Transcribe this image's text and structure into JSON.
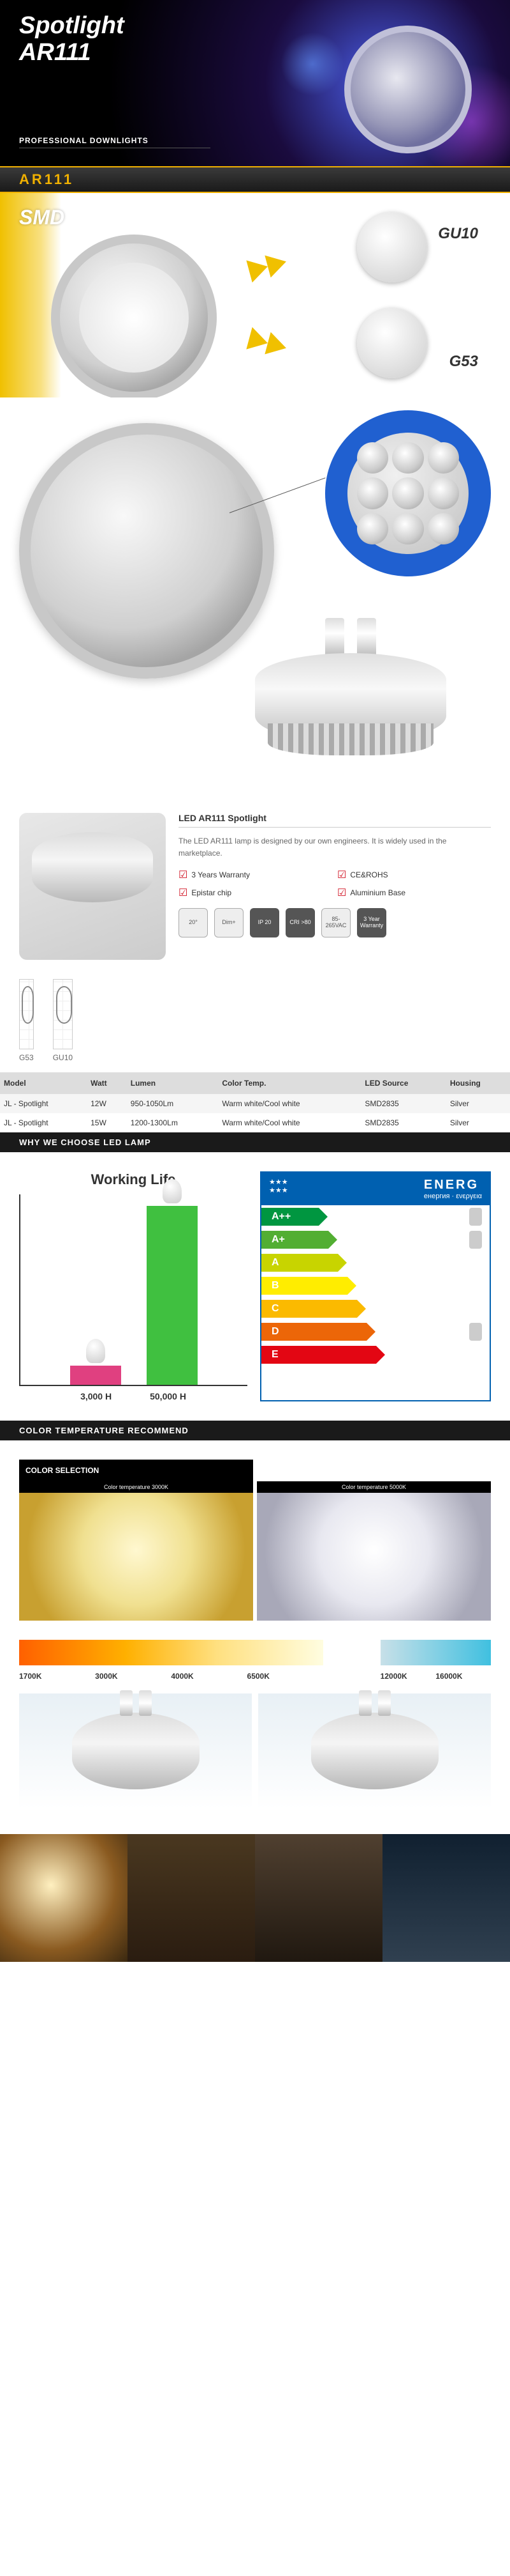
{
  "hero": {
    "line1": "Spotlight",
    "line2": "AR111",
    "sub": "PROFESSIONAL DOWNLIGHTS"
  },
  "bar_ar": "AR111",
  "smd": {
    "label": "SMD",
    "sock1": "GU10",
    "sock2": "G53"
  },
  "info": {
    "title": "LED AR111 Spotlight",
    "desc": "The LED AR111 lamp is designed by our own engineers. It is widely used in the marketplace.",
    "badges": [
      "3 Years Warranty",
      "CE&ROHS",
      "Epistar chip",
      "Aluminium Base"
    ],
    "icons": [
      {
        "t": "20°",
        "cls": "lt"
      },
      {
        "t": "Dim+",
        "cls": "lt"
      },
      {
        "t": "IP 20",
        "cls": ""
      },
      {
        "t": "CRI >80",
        "cls": ""
      },
      {
        "t": "85-265VAC",
        "cls": "lt"
      },
      {
        "t": "3 Year Warranty",
        "cls": ""
      }
    ]
  },
  "schem": {
    "l1": "G53",
    "l2": "GU10"
  },
  "specTable": {
    "headers": [
      "Model",
      "Watt",
      "Lumen",
      "Color Temp.",
      "LED Source",
      "Housing"
    ],
    "rows": [
      [
        "JL - Spotlight",
        "12W",
        "950-1050Lm",
        "Warm white/Cool white",
        "SMD2835",
        "Silver"
      ],
      [
        "JL - Spotlight",
        "15W",
        "1200-1300Lm",
        "Warm white/Cool white",
        "SMD2835",
        "Silver"
      ]
    ]
  },
  "why_bar": "WHY WE CHOOSE LED LAMP",
  "worklife": {
    "title": "Working Life",
    "l1": "3,000 H",
    "l2": "50,000 H",
    "bar_color_a": "#e04080",
    "bar_color_b": "#40c040"
  },
  "energy": {
    "brand": "ENERG",
    "sub": "енергия · ενεργεια",
    "labels": [
      "A++",
      "A+",
      "A",
      "B",
      "C",
      "D",
      "E"
    ]
  },
  "ct_bar": "COLOR TEMPERATURE RECOMMEND",
  "ct": {
    "sel": "COLOR SELECTION",
    "warm_sub": "Color temperature 3000K",
    "cool_sub": "Color temperature 5000K",
    "warm_labels": [
      "1700K",
      "3000K",
      "4000K",
      "6500K"
    ],
    "cold_labels": [
      "12000K",
      "16000K"
    ]
  }
}
